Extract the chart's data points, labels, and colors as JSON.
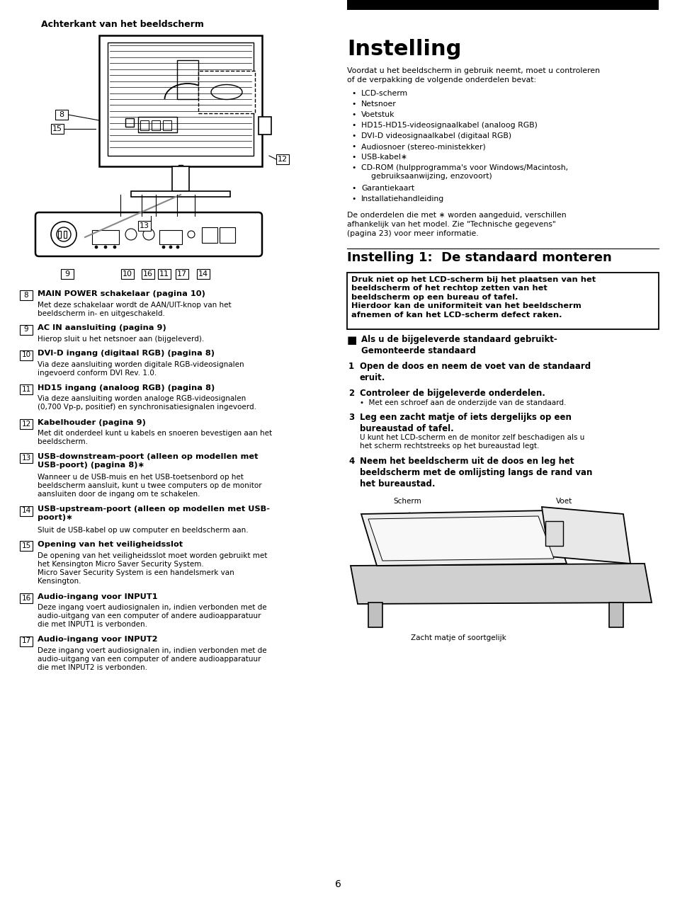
{
  "page_bg": "#ffffff",
  "page_number": "6",
  "left_header": "Achterkant van het beeldscherm",
  "title_right": "Instelling",
  "section2_title": "Instelling 1:  De standaard monteren",
  "intro_text": "Voordat u het beeldscherm in gebruik neemt, moet u controleren\nof de verpakking de volgende onderdelen bevat:",
  "bullet_items": [
    "LCD-scherm",
    "Netsnoer",
    "Voetstuk",
    "HD15-HD15-videosignaalkabel (analoog RGB)",
    "DVI-D videosignaalkabel (digitaal RGB)",
    "Audiosnoer (stereo-ministekker)",
    "USB-kabel∗",
    "CD-ROM (hulpprogramma's voor Windows/Macintosh,\n    gebruiksaanwijzing, enzovoort)",
    "Garantiekaart",
    "Installatiehandleiding"
  ],
  "footnote_text": "De onderdelen die met ∗ worden aangeduid, verschillen\nafhankelijk van het model. Zie \"Technische gegevens\"\n(pagina 23) voor meer informatie.",
  "warning_text": "Druk niet op het LCD-scherm bij het plaatsen van het\nbeeldscherm of het rechtop zetten van het\nbeeldscherm op een bureau of tafel.\nHierdoor kan de uniformiteit van het beeldscherm\nafnemen of kan het LCD-scherm defect raken.",
  "section3_header_line1": "Als u de bijgeleverde standaard gebruikt-",
  "section3_header_line2": "Gemonteerde standaard",
  "items": [
    {
      "num": "8",
      "bold": "MAIN POWER schakelaar (pagina 10)",
      "body": "Met deze schakelaar wordt de AAN/UIT-knop van het\nbeeldscherm in- en uitgeschakeld."
    },
    {
      "num": "9",
      "bold": "AC IN aansluiting (pagina 9)",
      "body": "Hierop sluit u het netsnoer aan (bijgeleverd)."
    },
    {
      "num": "10",
      "bold": "DVI-D ingang (digitaal RGB) (pagina 8)",
      "body": "Via deze aansluiting worden digitale RGB-videosignalen\ningevoerd conform DVI Rev. 1.0."
    },
    {
      "num": "11",
      "bold": "HD15 ingang (analoog RGB) (pagina 8)",
      "body": "Via deze aansluiting worden analoge RGB-videosignalen\n(0,700 Vp-p, positief) en synchronisatiesignalen ingevoerd."
    },
    {
      "num": "12",
      "bold": "Kabelhouder (pagina 9)",
      "body": "Met dit onderdeel kunt u kabels en snoeren bevestigen aan het\nbeeldscherm."
    },
    {
      "num": "13",
      "bold": "USB-downstream-poort (alleen op modellen met\nUSB-poort) (pagina 8)∗",
      "body": "Wanneer u de USB-muis en het USB-toetsenbord op het\nbeeldscherm aansluit, kunt u twee computers op de monitor\naansluiten door de ingang om te schakelen."
    },
    {
      "num": "14",
      "bold": "USB-upstream-poort (alleen op modellen met USB-\npoort)∗",
      "body": "Sluit de USB-kabel op uw computer en beeldscherm aan."
    },
    {
      "num": "15",
      "bold": "Opening van het veiligheidsslot",
      "body": "De opening van het veiligheidsslot moet worden gebruikt met\nhet Kensington Micro Saver Security System.\nMicro Saver Security System is een handelsmerk van\nKensington."
    },
    {
      "num": "16",
      "bold": "Audio-ingang voor INPUT1",
      "body": "Deze ingang voert audiosignalen in, indien verbonden met de\naudio-uitgang van een computer of andere audioapparatuur\ndie met INPUT1 is verbonden."
    },
    {
      "num": "17",
      "bold": "Audio-ingang voor INPUT2",
      "body": "Deze ingang voert audiosignalen in, indien verbonden met de\naudio-uitgang van een computer of andere audioapparatuur\ndie met INPUT2 is verbonden."
    }
  ],
  "steps": [
    {
      "num": "1",
      "bold": "Open de doos en neem de voet van de standaard\neruit.",
      "body": ""
    },
    {
      "num": "2",
      "bold": "Controleer de bijgeleverde onderdelen.",
      "body": "•  Met een schroef aan de onderzijde van de standaard."
    },
    {
      "num": "3",
      "bold": "Leg een zacht matje of iets dergelijks op een\nbureaustad of tafel.",
      "body": "U kunt het LCD-scherm en de monitor zelf beschadigen als u\nhet scherm rechtstreeks op het bureaustad legt."
    },
    {
      "num": "4",
      "bold": "Neem het beeldscherm uit de doos en leg het\nbeeldscherm met de omlijsting langs de rand van\nhet bureaustad.",
      "body": ""
    }
  ]
}
